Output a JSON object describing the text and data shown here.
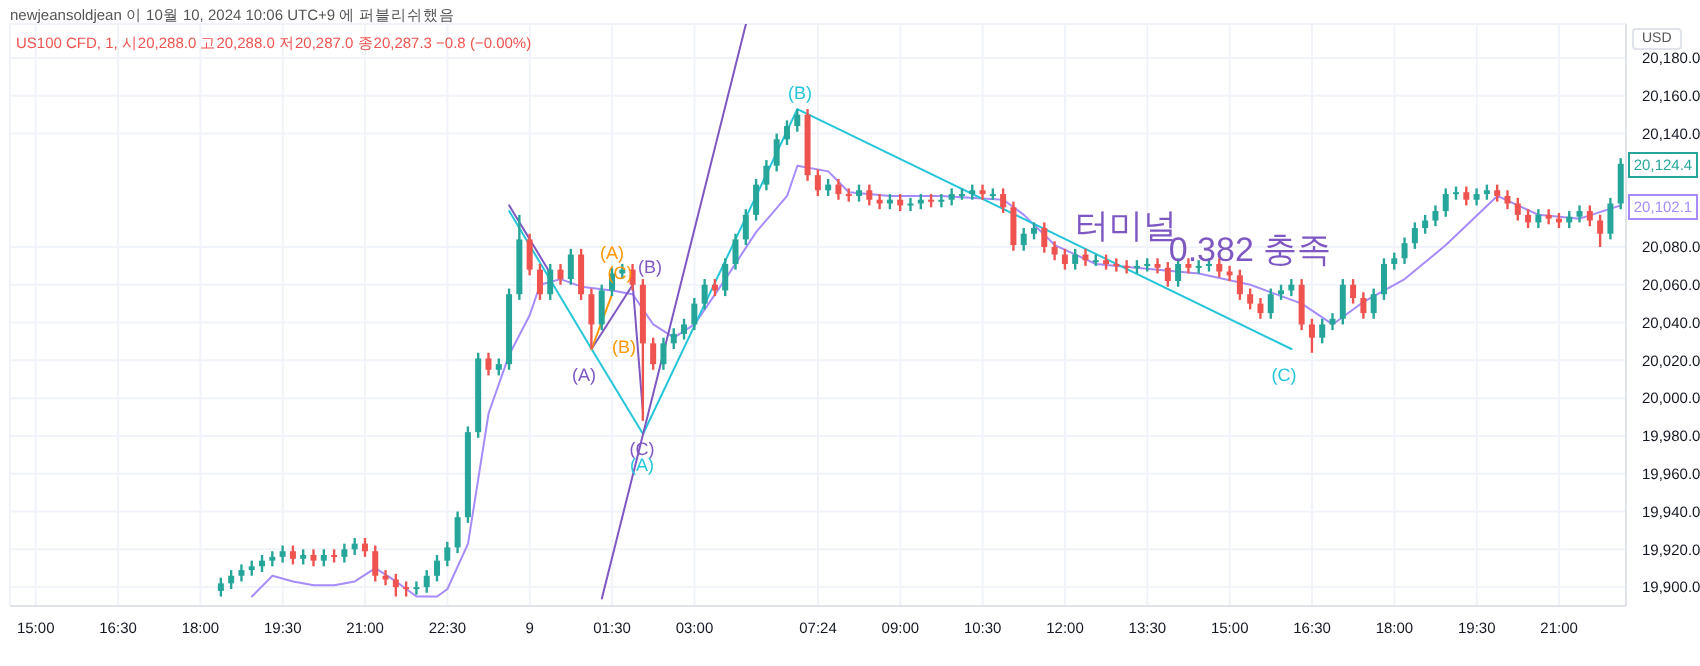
{
  "chart_data": {
    "type": "candlestick",
    "title": "newjeansoldjean 이 10월 10, 2024 10:06 UTC+9 에 퍼블리쉬했음",
    "subtitle": "US100 CFD, 1,  시20,288.0  고20,288.0  저20,287.0  종20,287.3  −0.8 (−0.00%)",
    "categories": [
      null,
      null,
      "15:00",
      null,
      null,
      null,
      null,
      null,
      null,
      null,
      "16:30",
      null,
      null,
      null,
      null,
      null,
      null,
      null,
      "18:00",
      null,
      null,
      null,
      null,
      null,
      null,
      null,
      "19:30",
      null,
      null,
      null,
      null,
      null,
      null,
      null,
      "21:00",
      null,
      null,
      null,
      null,
      null,
      null,
      null,
      "22:30",
      null,
      null,
      null,
      null,
      null,
      null,
      null,
      "9",
      null,
      null,
      null,
      null,
      null,
      null,
      null,
      "01:30",
      null,
      null,
      null,
      null,
      null,
      null,
      null,
      "03:00",
      null,
      null,
      null,
      null,
      null,
      null,
      null,
      null,
      null,
      null,
      null,
      "07:24",
      null,
      null,
      null,
      null,
      null,
      null,
      null,
      "09:00",
      null,
      null,
      null,
      null,
      null,
      null,
      null,
      "10:30",
      null,
      null,
      null,
      null,
      null,
      null,
      null,
      "12:00",
      null,
      null,
      null,
      null,
      null,
      null,
      null,
      "13:30",
      null,
      null,
      null,
      null,
      null,
      null,
      null,
      "15:00",
      null,
      null,
      null,
      null,
      null,
      null,
      null,
      "16:30",
      null,
      null,
      null,
      null,
      null,
      null,
      null,
      "18:00",
      null,
      null,
      null,
      null,
      null,
      null,
      null,
      "19:30",
      null,
      null,
      null,
      null,
      null,
      null,
      null,
      "21:00",
      null,
      null,
      null,
      null,
      null,
      null
    ],
    "ohlc": [
      null,
      null,
      null,
      null,
      null,
      null,
      null,
      null,
      null,
      null,
      null,
      null,
      null,
      null,
      null,
      null,
      null,
      null,
      null,
      null,
      [
        19898,
        19905,
        19895,
        19902
      ],
      [
        19902,
        19909,
        19899,
        19906
      ],
      [
        19906,
        19912,
        19903,
        19909
      ],
      [
        19909,
        19914,
        19906,
        19911
      ],
      [
        19911,
        19917,
        19908,
        19914
      ],
      [
        19914,
        19919,
        19911,
        19916
      ],
      [
        19916,
        19922,
        19913,
        19919
      ],
      [
        19919,
        19922,
        19912,
        19915
      ],
      [
        19915,
        19920,
        19912,
        19917
      ],
      [
        19917,
        19920,
        19911,
        19914
      ],
      [
        19914,
        19920,
        19911,
        19917
      ],
      [
        19917,
        19920,
        19913,
        19916
      ],
      [
        19916,
        19923,
        19913,
        19920
      ],
      [
        19920,
        19926,
        19917,
        19923
      ],
      [
        19923,
        19926,
        19916,
        19919
      ],
      [
        19919,
        19922,
        19903,
        19906
      ],
      [
        19906,
        19909,
        19901,
        19904
      ],
      [
        19904,
        19907,
        19895,
        19900
      ],
      [
        19900,
        19903,
        19895,
        19899
      ],
      [
        19899,
        19903,
        19896,
        19900
      ],
      [
        19900,
        19909,
        19897,
        19906
      ],
      [
        19906,
        19917,
        19903,
        19914
      ],
      [
        19914,
        19924,
        19911,
        19921
      ],
      [
        19921,
        19940,
        19918,
        19937
      ],
      [
        19937,
        19985,
        19934,
        19982
      ],
      [
        19982,
        20024,
        19979,
        20021
      ],
      [
        20021,
        20024,
        20012,
        20015
      ],
      [
        20015,
        20021,
        20012,
        20018
      ],
      [
        20018,
        20058,
        20015,
        20055
      ],
      [
        20055,
        20097,
        20052,
        20084
      ],
      [
        20084,
        20087,
        20065,
        20068
      ],
      [
        20068,
        20071,
        20052,
        20055
      ],
      [
        20055,
        20071,
        20052,
        20068
      ],
      [
        20068,
        20071,
        20060,
        20063
      ],
      [
        20063,
        20079,
        20060,
        20076
      ],
      [
        20076,
        20079,
        20052,
        20055
      ],
      [
        20055,
        20058,
        20026,
        20039
      ],
      [
        20039,
        20060,
        20036,
        20057
      ],
      [
        20057,
        20069,
        20054,
        20066
      ],
      [
        20066,
        20071,
        20063,
        20068
      ],
      [
        20068,
        20071,
        20057,
        20060
      ],
      [
        20060,
        20063,
        19988,
        20029
      ],
      [
        20029,
        20032,
        20015,
        20018
      ],
      [
        20018,
        20032,
        20015,
        20029
      ],
      [
        20029,
        20037,
        20026,
        20034
      ],
      [
        20034,
        20042,
        20031,
        20039
      ],
      [
        20039,
        20053,
        20036,
        20050
      ],
      [
        20050,
        20063,
        20047,
        20060
      ],
      [
        20060,
        20063,
        20054,
        20057
      ],
      [
        20057,
        20074,
        20054,
        20071
      ],
      [
        20071,
        20087,
        20068,
        20084
      ],
      [
        20084,
        20100,
        20081,
        20097
      ],
      [
        20097,
        20116,
        20094,
        20113
      ],
      [
        20113,
        20126,
        20110,
        20123
      ],
      [
        20123,
        20140,
        20120,
        20137
      ],
      [
        20137,
        20147,
        20134,
        20144
      ],
      [
        20144,
        20153,
        20141,
        20150
      ],
      [
        20150,
        20153,
        20115,
        20118
      ],
      [
        20118,
        20121,
        20107,
        20110
      ],
      [
        20110,
        20116,
        20107,
        20113
      ],
      [
        20113,
        20116,
        20105,
        20108
      ],
      [
        20108,
        20111,
        20104,
        20107
      ],
      [
        20107,
        20113,
        20104,
        20110
      ],
      [
        20110,
        20113,
        20102,
        20105
      ],
      [
        20105,
        20108,
        20100,
        20103
      ],
      [
        20103,
        20108,
        20100,
        20105
      ],
      [
        20105,
        20108,
        20099,
        20102
      ],
      [
        20102,
        20106,
        20099,
        20103
      ],
      [
        20103,
        20108,
        20100,
        20105
      ],
      [
        20105,
        20108,
        20101,
        20104
      ],
      [
        20104,
        20108,
        20101,
        20105
      ],
      [
        20105,
        20111,
        20102,
        20108
      ],
      [
        20108,
        20111,
        20105,
        20108
      ],
      [
        20108,
        20113,
        20105,
        20110
      ],
      [
        20110,
        20113,
        20105,
        20108
      ],
      [
        20108,
        20111,
        20105,
        20108
      ],
      [
        20108,
        20111,
        20098,
        20101
      ],
      [
        20101,
        20104,
        20078,
        20081
      ],
      [
        20081,
        20090,
        20078,
        20087
      ],
      [
        20087,
        20093,
        20084,
        20090
      ],
      [
        20090,
        20093,
        20077,
        20080
      ],
      [
        20080,
        20083,
        20073,
        20076
      ],
      [
        20076,
        20079,
        20068,
        20071
      ],
      [
        20071,
        20079,
        20068,
        20076
      ],
      [
        20076,
        20079,
        20070,
        20073
      ],
      [
        20073,
        20076,
        20070,
        20073
      ],
      [
        20073,
        20076,
        20068,
        20071
      ],
      [
        20071,
        20074,
        20067,
        20070
      ],
      [
        20070,
        20073,
        20066,
        20069
      ],
      [
        20069,
        20073,
        20066,
        20070
      ],
      [
        20070,
        20074,
        20067,
        20071
      ],
      [
        20071,
        20074,
        20066,
        20069
      ],
      [
        20069,
        20072,
        20059,
        20062
      ],
      [
        20062,
        20074,
        20059,
        20071
      ],
      [
        20071,
        20074,
        20066,
        20069
      ],
      [
        20069,
        20073,
        20066,
        20070
      ],
      [
        20070,
        20074,
        20067,
        20071
      ],
      [
        20071,
        20074,
        20064,
        20067
      ],
      [
        20067,
        20070,
        20062,
        20065
      ],
      [
        20065,
        20068,
        20052,
        20055
      ],
      [
        20055,
        20058,
        20047,
        20050
      ],
      [
        20050,
        20053,
        20042,
        20045
      ],
      [
        20045,
        20058,
        20042,
        20055
      ],
      [
        20055,
        20060,
        20052,
        20057
      ],
      [
        20057,
        20063,
        20054,
        20060
      ],
      [
        20060,
        20063,
        20036,
        20039
      ],
      [
        20039,
        20042,
        20024,
        20032
      ],
      [
        20032,
        20042,
        20029,
        20039
      ],
      [
        20039,
        20045,
        20036,
        20042
      ],
      [
        20042,
        20063,
        20039,
        20060
      ],
      [
        20060,
        20063,
        20050,
        20053
      ],
      [
        20053,
        20056,
        20042,
        20045
      ],
      [
        20045,
        20058,
        20042,
        20055
      ],
      [
        20055,
        20074,
        20052,
        20071
      ],
      [
        20071,
        20077,
        20068,
        20074
      ],
      [
        20074,
        20085,
        20071,
        20082
      ],
      [
        20082,
        20093,
        20079,
        20090
      ],
      [
        20090,
        20097,
        20087,
        20094
      ],
      [
        20094,
        20102,
        20091,
        20099
      ],
      [
        20099,
        20111,
        20096,
        20108
      ],
      [
        20108,
        20112,
        20105,
        20109
      ],
      [
        20109,
        20112,
        20102,
        20105
      ],
      [
        20105,
        20111,
        20102,
        20108
      ],
      [
        20108,
        20113,
        20105,
        20110
      ],
      [
        20110,
        20113,
        20104,
        20107
      ],
      [
        20107,
        20110,
        20100,
        20103
      ],
      [
        20103,
        20106,
        20094,
        20097
      ],
      [
        20097,
        20100,
        20090,
        20093
      ],
      [
        20093,
        20100,
        20090,
        20097
      ],
      [
        20097,
        20100,
        20092,
        20095
      ],
      [
        20095,
        20098,
        20090,
        20093
      ],
      [
        20093,
        20099,
        20090,
        20096
      ],
      [
        20096,
        20102,
        20093,
        20099
      ],
      [
        20099,
        20102,
        20091,
        20094
      ],
      [
        20094,
        20097,
        20080,
        20087
      ],
      [
        20087,
        20106,
        20084,
        20103
      ],
      [
        20103,
        20127,
        20100,
        20124
      ]
    ],
    "colors": [
      null,
      null,
      null,
      null,
      null,
      null,
      null,
      null,
      null,
      null,
      null,
      null,
      null,
      null,
      null,
      null,
      null,
      null,
      null,
      null,
      "#26a69a",
      "#26a69a",
      "#26a69a",
      "#26a69a",
      "#26a69a",
      "#26a69a",
      "#26a69a",
      "#ef5350",
      "#26a69a",
      "#ef5350",
      "#26a69a",
      "#ef5350",
      "#26a69a",
      "#26a69a",
      "#ef5350",
      "#ef5350",
      "#ef5350",
      "#ef5350",
      "#ef5350",
      "#26a69a",
      "#26a69a",
      "#26a69a",
      "#26a69a",
      "#26a69a",
      "#26a69a",
      "#26a69a",
      "#ef5350",
      "#26a69a",
      "#26a69a",
      "#26a69a",
      "#ef5350",
      "#ef5350",
      "#26a69a",
      "#ef5350",
      "#26a69a",
      "#ef5350",
      "#ef5350",
      "#26a69a",
      "#26a69a",
      "#26a69a",
      "#ef5350",
      "#ef5350",
      "#ef5350",
      "#26a69a",
      "#26a69a",
      "#26a69a",
      "#26a69a",
      "#26a69a",
      "#ef5350",
      "#26a69a",
      "#26a69a",
      "#26a69a",
      "#26a69a",
      "#26a69a",
      "#26a69a",
      "#26a69a",
      "#26a69a",
      "#ef5350",
      "#ef5350",
      "#26a69a",
      "#ef5350",
      "#ef5350",
      "#26a69a",
      "#ef5350",
      "#ef5350",
      "#26a69a",
      "#ef5350",
      "#26a69a",
      "#26a69a",
      "#ef5350",
      "#26a69a",
      "#26a69a",
      "#26a69a",
      "#26a69a",
      "#ef5350",
      "#26a69a",
      "#ef5350",
      "#ef5350",
      "#26a69a",
      "#26a69a",
      "#ef5350",
      "#ef5350",
      "#ef5350",
      "#26a69a",
      "#ef5350",
      "#26a69a",
      "#ef5350",
      "#ef5350",
      "#ef5350",
      "#26a69a",
      "#26a69a",
      "#ef5350",
      "#ef5350",
      "#26a69a",
      "#ef5350",
      "#26a69a",
      "#26a69a",
      "#ef5350",
      "#ef5350",
      "#ef5350",
      "#ef5350",
      "#ef5350",
      "#26a69a",
      "#26a69a",
      "#26a69a",
      "#ef5350",
      "#ef5350",
      "#26a69a",
      "#26a69a",
      "#26a69a",
      "#ef5350",
      "#ef5350",
      "#26a69a",
      "#26a69a",
      "#26a69a",
      "#26a69a",
      "#26a69a",
      "#26a69a",
      "#26a69a",
      "#26a69a",
      "#26a69a",
      "#ef5350",
      "#26a69a",
      "#26a69a",
      "#ef5350",
      "#ef5350",
      "#ef5350",
      "#ef5350",
      "#26a69a",
      "#ef5350",
      "#ef5350",
      "#26a69a",
      "#26a69a",
      "#ef5350",
      "#ef5350",
      "#26a69a",
      "#26a69a"
    ],
    "series": [
      {
        "type": "line",
        "color": "#a78bfa",
        "values": [
          null,
          null,
          null,
          null,
          null,
          null,
          null,
          null,
          null,
          null,
          null,
          null,
          null,
          null,
          null,
          null,
          null,
          null,
          null,
          null,
          null,
          null,
          null,
          19895,
          null,
          19906,
          null,
          19903,
          null,
          19901,
          null,
          19901,
          null,
          19903,
          null,
          19910,
          null,
          19903,
          null,
          19895,
          null,
          19895,
          19899,
          null,
          19923,
          null,
          19992,
          null,
          20023,
          null,
          20044,
          20060,
          null,
          20063,
          null,
          20059,
          null,
          null,
          20057,
          null,
          20055,
          null,
          20039,
          null,
          20032,
          null,
          20039,
          null,
          null,
          20063,
          null,
          null,
          20088,
          null,
          null,
          20107,
          20123,
          null,
          null,
          20120,
          null,
          20109,
          null,
          null,
          null,
          20107,
          null,
          null,
          null,
          null,
          20107,
          null,
          null,
          null,
          null,
          null,
          20105,
          null,
          20097,
          null,
          null,
          20081,
          null,
          null,
          null,
          20071,
          null,
          null,
          null,
          null,
          null,
          20068,
          null,
          null,
          null,
          20066,
          null,
          null,
          null,
          null,
          20060,
          null,
          null,
          null,
          null,
          20050,
          null,
          null,
          20039,
          null,
          null,
          20051,
          null,
          null,
          null,
          20063,
          null,
          null,
          null,
          20081,
          null,
          null,
          null,
          null,
          20107,
          null,
          null,
          null,
          20097,
          null,
          null,
          null,
          20095,
          null,
          null,
          null,
          20102
        ]
      },
      {
        "type": "line",
        "color": "#26c6da",
        "values": [
          null,
          null,
          null,
          null,
          null,
          null,
          null,
          null,
          null,
          null,
          null,
          null,
          null,
          null,
          null,
          null,
          null,
          null,
          null,
          null,
          null,
          null,
          null,
          null,
          null,
          null,
          null,
          null,
          null,
          null,
          null,
          null,
          null,
          null,
          null,
          null,
          null,
          null,
          null,
          null,
          null,
          null,
          null,
          null,
          null,
          null,
          null,
          null,
          20099,
          null,
          null,
          null,
          null,
          null,
          null,
          null,
          20026,
          null,
          null,
          null,
          null,
          19981,
          null,
          null,
          null,
          null,
          null,
          null,
          null,
          null,
          null,
          null,
          null,
          null,
          null,
          null,
          20153,
          null,
          null,
          null,
          null,
          null,
          null,
          null,
          null,
          null,
          null,
          null,
          null,
          null,
          null,
          null,
          null,
          null,
          null,
          null,
          null,
          null,
          null,
          null,
          null,
          null,
          null,
          null,
          null,
          null,
          null,
          null,
          null,
          null,
          null,
          null,
          null,
          null,
          null,
          null,
          null,
          null,
          null,
          null,
          null,
          null,
          null,
          null,
          20026,
          null,
          null,
          null,
          null,
          null,
          null,
          null,
          null,
          null,
          null,
          null,
          null,
          null,
          null,
          null,
          null,
          null,
          null,
          null,
          null,
          null,
          null,
          null,
          null,
          null,
          null,
          null,
          null,
          null,
          null,
          null,
          null
        ]
      },
      {
        "type": "line",
        "color": "#7e57c2",
        "values": [
          null,
          null,
          null,
          null,
          null,
          null,
          null,
          null,
          null,
          null,
          null,
          null,
          null,
          null,
          null,
          null,
          null,
          null,
          null,
          null,
          null,
          null,
          null,
          null,
          null,
          null,
          null,
          null,
          null,
          null,
          null,
          null,
          null,
          null,
          null,
          null,
          null,
          null,
          null,
          null,
          null,
          null,
          null,
          null,
          null,
          null,
          null,
          null,
          20102,
          null,
          null,
          null,
          20066,
          null,
          null,
          null,
          null,
          null,
          null,
          null,
          null,
          null,
          null,
          null,
          null,
          null,
          null,
          null,
          null,
          null,
          null,
          null,
          null,
          null,
          null,
          null,
          null,
          null,
          null,
          null,
          null,
          null,
          null,
          null,
          null,
          null,
          null,
          null,
          null,
          null,
          null,
          null,
          null,
          null,
          null,
          null,
          null,
          null,
          null,
          null,
          null,
          null,
          null,
          null,
          null,
          null,
          null,
          null,
          null,
          null,
          null,
          null,
          null,
          null,
          null,
          null,
          null,
          null,
          null,
          null,
          null,
          null,
          null,
          null,
          null,
          null,
          null,
          null,
          null,
          null,
          null,
          null,
          null,
          null,
          null,
          null,
          null,
          null,
          null,
          null,
          null,
          null,
          null,
          null,
          null,
          null,
          null,
          null,
          null,
          null,
          null,
          null,
          null,
          null,
          null,
          null,
          null
        ]
      },
      {
        "type": "line",
        "color": "#7e57c2",
        "values": [
          null,
          null,
          null,
          null,
          null,
          null,
          null,
          null,
          null,
          null,
          null,
          null,
          null,
          null,
          null,
          null,
          null,
          null,
          null,
          null,
          null,
          null,
          null,
          null,
          null,
          null,
          null,
          null,
          null,
          null,
          null,
          null,
          null,
          null,
          null,
          null,
          null,
          null,
          null,
          null,
          null,
          null,
          null,
          null,
          null,
          null,
          null,
          null,
          null,
          null,
          null,
          null,
          null,
          null,
          null,
          null,
          20026,
          null,
          null,
          null,
          20060,
          19992,
          null,
          null,
          null,
          null,
          null,
          null,
          null,
          null,
          null,
          null,
          null,
          null,
          null,
          null,
          null,
          null,
          null,
          null,
          null,
          null,
          null,
          null,
          null,
          null,
          null,
          null,
          null,
          null,
          null,
          null,
          null,
          null,
          null,
          null,
          null,
          null,
          null,
          null,
          null,
          null,
          null,
          null,
          null,
          null,
          null,
          null,
          null,
          null,
          null,
          null,
          null,
          null,
          null,
          null,
          null,
          null,
          null,
          null,
          null,
          null,
          null,
          null,
          null,
          null,
          null,
          null,
          null,
          null,
          null,
          null,
          null,
          null,
          null,
          null,
          null,
          null,
          null,
          null,
          null,
          null,
          null,
          null,
          null,
          null,
          null,
          null,
          null,
          null,
          null,
          null,
          null,
          null,
          null,
          null,
          null
        ]
      },
      {
        "type": "line",
        "color": "#ff9800",
        "values": [
          null,
          null,
          null,
          null,
          null,
          null,
          null,
          null,
          null,
          null,
          null,
          null,
          null,
          null,
          null,
          null,
          null,
          null,
          null,
          null,
          null,
          null,
          null,
          null,
          null,
          null,
          null,
          null,
          null,
          null,
          null,
          null,
          null,
          null,
          null,
          null,
          null,
          null,
          null,
          null,
          null,
          null,
          null,
          null,
          null,
          null,
          null,
          null,
          null,
          null,
          null,
          null,
          null,
          null,
          null,
          null,
          20026,
          null,
          20055,
          null,
          null,
          null,
          null,
          null,
          null,
          null,
          null,
          null,
          null,
          null,
          null,
          null,
          null,
          null,
          null,
          null,
          null,
          null,
          null,
          null,
          null,
          null,
          null,
          null,
          null,
          null,
          null,
          null,
          null,
          null,
          null,
          null,
          null,
          null,
          null,
          null,
          null,
          null,
          null,
          null,
          null,
          null,
          null,
          null,
          null,
          null,
          null,
          null,
          null,
          null,
          null,
          null,
          null,
          null,
          null,
          null,
          null,
          null,
          null,
          null,
          null,
          null,
          null,
          null,
          null,
          null,
          null,
          null,
          null,
          null,
          null,
          null,
          null,
          null,
          null,
          null,
          null,
          null,
          null,
          null,
          null,
          null,
          null,
          null,
          null,
          null,
          null,
          null,
          null,
          null,
          null,
          null,
          null,
          null,
          null,
          null,
          null
        ]
      },
      {
        "type": "line",
        "color": "#7e57c2",
        "values": [
          null,
          null,
          null,
          null,
          null,
          null,
          null,
          null,
          null,
          null,
          null,
          null,
          null,
          null,
          null,
          null,
          null,
          null,
          null,
          null,
          null,
          null,
          null,
          null,
          null,
          null,
          null,
          null,
          null,
          null,
          null,
          null,
          null,
          null,
          null,
          null,
          null,
          null,
          null,
          null,
          null,
          null,
          null,
          null,
          null,
          null,
          null,
          null,
          null,
          null,
          null,
          null,
          null,
          null,
          null,
          null,
          null,
          19894,
          null,
          null,
          null,
          null,
          null,
          null,
          null,
          null,
          null,
          null,
          null,
          null,
          null,
          20198,
          null,
          null,
          null,
          null,
          null,
          null,
          null,
          null,
          null,
          null,
          null,
          null,
          null,
          null,
          null,
          null,
          null,
          null,
          null,
          null,
          null,
          null,
          null,
          null,
          null,
          null,
          null,
          null,
          null,
          null,
          null,
          null,
          null,
          null,
          null,
          null,
          null,
          null,
          null,
          null,
          null,
          null,
          null,
          null,
          null,
          null,
          null,
          null,
          null,
          null,
          null,
          null,
          null,
          null,
          null,
          null,
          null,
          null,
          null,
          null,
          null,
          null,
          null,
          null,
          null,
          null,
          null,
          null,
          null,
          null,
          null,
          null,
          null,
          null,
          null,
          null,
          null,
          null,
          null,
          null,
          null,
          null,
          null,
          null,
          null
        ]
      }
    ],
    "annotations": [
      "(A)",
      "(A)",
      "(C)",
      "(B)",
      "(B)",
      "(C)",
      "(A)",
      "(B)",
      "(C)",
      "터미널",
      "0.382 충족",
      "20,124.4",
      "20,102.1",
      "USD"
    ],
    "ylim": [
      19890,
      20198
    ],
    "yticks": [
      {
        "value": 19900,
        "label": "19,900.0"
      },
      {
        "value": 19920,
        "label": "19,920.0"
      },
      {
        "value": 19940,
        "label": "19,940.0"
      },
      {
        "value": 19960,
        "label": "19,960.0"
      },
      {
        "value": 19980,
        "label": "19,980.0"
      },
      {
        "value": 20000,
        "label": "20,000.0"
      },
      {
        "value": 20020,
        "label": "20,020.0"
      },
      {
        "value": 20040,
        "label": "20,040.0"
      },
      {
        "value": 20060,
        "label": "20,060.0"
      },
      {
        "value": 20080,
        "label": "20,080.0"
      },
      {
        "value": 20140,
        "label": "20,140.0"
      },
      {
        "value": 20160,
        "label": "20,160.0"
      },
      {
        "value": 20180,
        "label": "20,180.0"
      }
    ],
    "grid": true,
    "legend": false
  }
}
